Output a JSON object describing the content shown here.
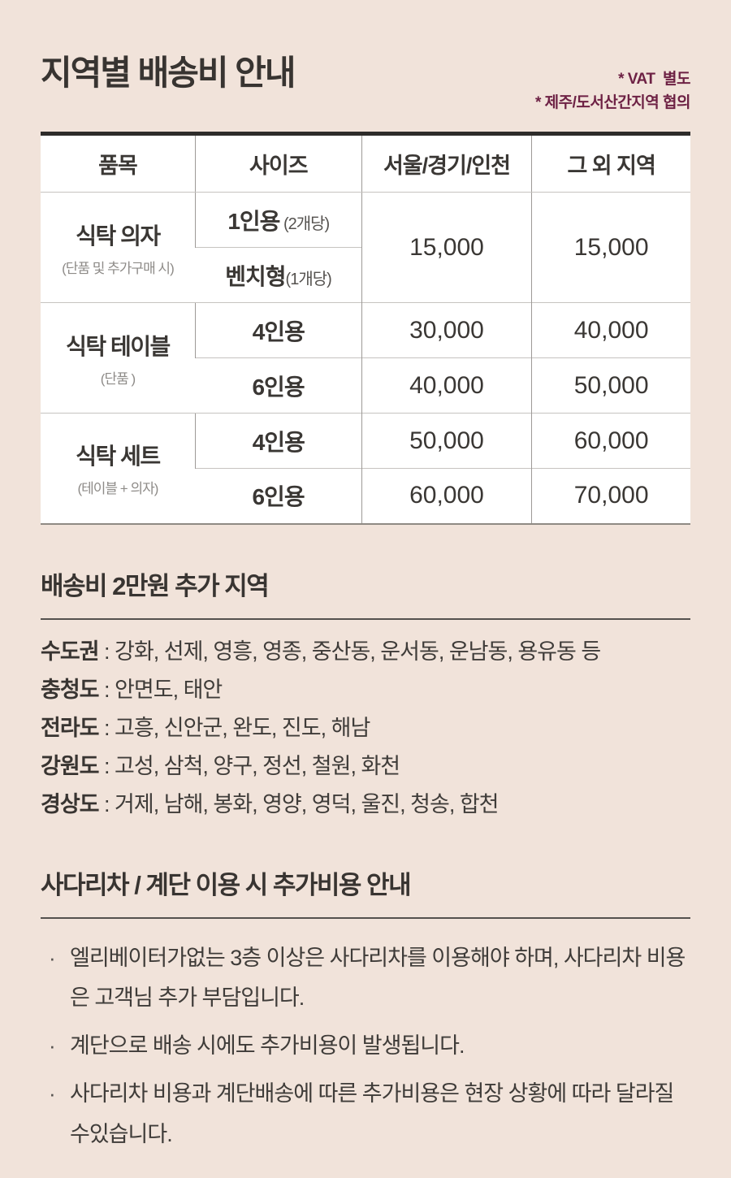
{
  "page": {
    "bg_color": "#f1e3da",
    "accent_color": "#6d2144",
    "text_color": "#3b3836"
  },
  "header": {
    "title": "지역별 배송비 안내",
    "notes": [
      "* VAT  별도",
      "* 제주/도서산간지역 협의"
    ]
  },
  "table": {
    "columns": [
      "품목",
      "사이즈",
      "서울/경기/인천",
      "그 외 지역"
    ],
    "groups": [
      {
        "item": "식탁 의자",
        "item_note": "(단품 및 추가구매 시)",
        "rows": [
          {
            "size": "1인용",
            "size_note": " (2개당)",
            "price_seoul": "15,000",
            "price_other": "15,000"
          },
          {
            "size": "벤치형",
            "size_note": "(1개당)"
          }
        ],
        "prices_merged": true
      },
      {
        "item": "식탁 테이블",
        "item_note": "(단품 )",
        "rows": [
          {
            "size": "4인용",
            "size_note": "",
            "price_seoul": "30,000",
            "price_other": "40,000"
          },
          {
            "size": "6인용",
            "size_note": "",
            "price_seoul": "40,000",
            "price_other": "50,000"
          }
        ],
        "prices_merged": false
      },
      {
        "item": "식탁 세트",
        "item_note": "(테이블 + 의자)",
        "rows": [
          {
            "size": "4인용",
            "size_note": "",
            "price_seoul": "50,000",
            "price_other": "60,000"
          },
          {
            "size": "6인용",
            "size_note": "",
            "price_seoul": "60,000",
            "price_other": "70,000"
          }
        ],
        "prices_merged": false
      }
    ]
  },
  "extra_fee_section": {
    "heading": "배송비 2만원 추가 지역",
    "separator": " : ",
    "regions": [
      {
        "label": "수도권",
        "areas": "강화, 선제, 영흥, 영종, 중산동, 운서동, 운남동, 용유동 등"
      },
      {
        "label": "충청도",
        "areas": "안면도, 태안"
      },
      {
        "label": "전라도",
        "areas": "고흥, 신안군, 완도, 진도, 해남"
      },
      {
        "label": "강원도",
        "areas": "고성, 삼척, 양구, 정선, 철원, 화천"
      },
      {
        "label": "경상도",
        "areas": "거제, 남해, 봉화, 영양, 영덕, 울진, 청송, 합천"
      }
    ]
  },
  "ladder_section": {
    "heading": "사다리차 / 계단 이용 시 추가비용 안내",
    "bullet_char": "·",
    "bullets": [
      "엘리베이터가없는 3층 이상은 사다리차를 이용해야 하며, 사다리차 비용은 고객님 추가 부담입니다.",
      "계단으로 배송 시에도 추가비용이 발생됩니다.",
      "사다리차 비용과 계단배송에 따른 추가비용은 현장 상황에 따라 달라질 수있습니다."
    ]
  }
}
